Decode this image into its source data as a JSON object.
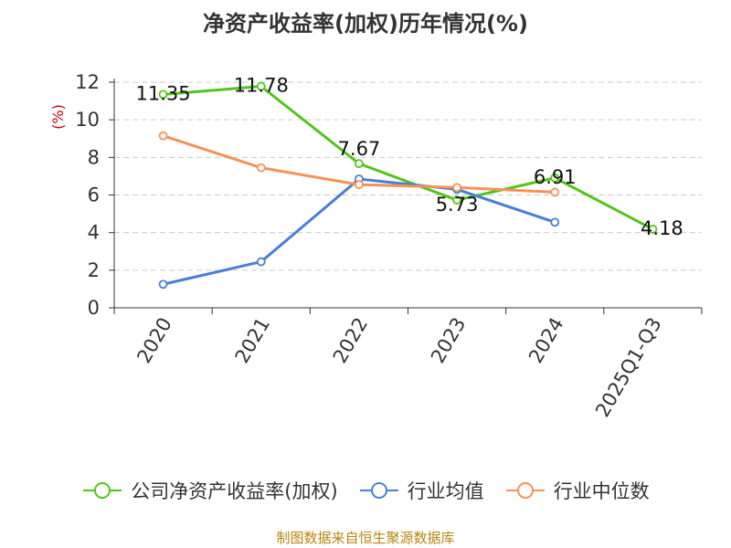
{
  "chart_data": {
    "type": "line",
    "title": "净资产收益率(加权)历年情况(%)",
    "ylabel": "(%)",
    "xlabel": "",
    "categories": [
      "2020",
      "2021",
      "2022",
      "2023",
      "2024",
      "2025Q1-Q3"
    ],
    "ylim": [
      0,
      12
    ],
    "yticks": [
      0,
      2,
      4,
      6,
      8,
      10,
      12
    ],
    "grid": true,
    "legend_position": "bottom",
    "series": [
      {
        "name": "公司净资产收益率(加权)",
        "color": "#52c41a",
        "values": [
          11.35,
          11.78,
          7.67,
          5.73,
          6.91,
          4.18
        ],
        "labels": [
          "11.35",
          "11.78",
          "7.67",
          "5.73",
          "6.91",
          "4.18"
        ]
      },
      {
        "name": "行业均值",
        "color": "#4a7fd6",
        "values": [
          1.25,
          2.45,
          6.85,
          6.3,
          4.55,
          null
        ]
      },
      {
        "name": "行业中位数",
        "color": "#f5925a",
        "values": [
          9.15,
          7.45,
          6.55,
          6.4,
          6.15,
          null
        ]
      }
    ]
  },
  "source": "制图数据来自恒生聚源数据库"
}
